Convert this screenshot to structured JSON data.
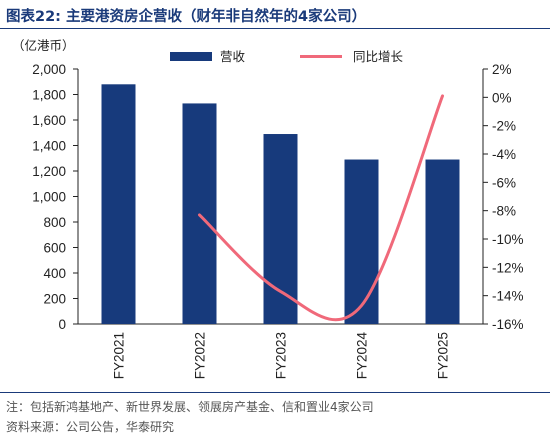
{
  "figure": {
    "title": "图表22:  主要港资房企营收（财年非自然年的4家公司）",
    "note": "注：包括新鸿基地产、新世界发展、领展房产基金、信和置业4家公司",
    "source": "资料来源：公司公告，华泰研究"
  },
  "chart_data": {
    "type": "bar",
    "categories": [
      "FY2021",
      "FY2022",
      "FY2023",
      "FY2024",
      "FY2025"
    ],
    "y_unit": "（亿港币）",
    "series": [
      {
        "name": "营收",
        "type": "bar",
        "axis": "left",
        "color": "#173a7c",
        "values": [
          1880,
          1730,
          1490,
          1290,
          1290
        ]
      },
      {
        "name": "同比增长",
        "type": "line",
        "axis": "right",
        "color": "#f0697a",
        "values": [
          null,
          -8.3,
          -13.7,
          -14.7,
          0.1
        ]
      }
    ],
    "y_left": {
      "min": 0,
      "max": 2000,
      "ticks": [
        "0",
        "200",
        "400",
        "600",
        "800",
        "1,000",
        "1,200",
        "1,400",
        "1,600",
        "1,800",
        "2,000"
      ]
    },
    "y_right": {
      "min": -16,
      "max": 2,
      "ticks": [
        "-16%",
        "-14%",
        "-12%",
        "-10%",
        "-8%",
        "-6%",
        "-4%",
        "-2%",
        "0%",
        "2%"
      ]
    },
    "legend": "top-center",
    "grid": false
  }
}
